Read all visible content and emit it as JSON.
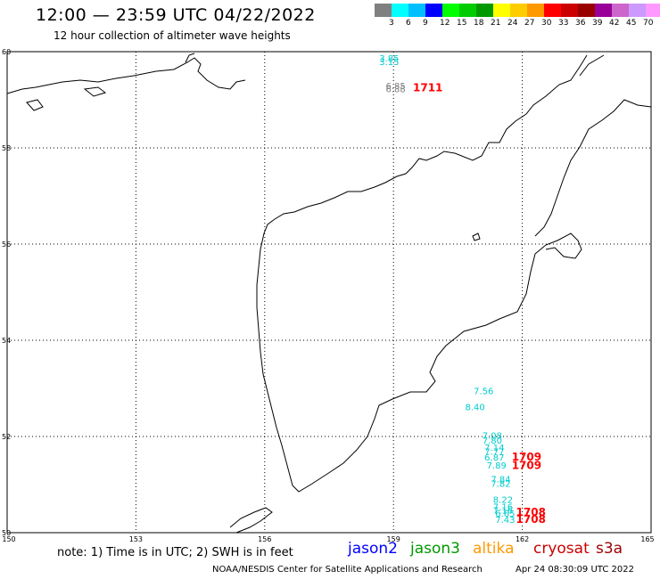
{
  "title": "12:00 — 23:59 UTC 04/22/2022",
  "subtitle": "12 hour collection of altimeter wave heights",
  "scale": {
    "unit": "(ft)",
    "colors": [
      "#808080",
      "#00ffff",
      "#00bfff",
      "#0000ff",
      "#00ff00",
      "#00cc00",
      "#009900",
      "#ffff00",
      "#ffcc00",
      "#ff9900",
      "#ff0000",
      "#cc0000",
      "#990000",
      "#990099",
      "#cc66cc",
      "#cc99ff",
      "#ff99ff",
      "#000000"
    ],
    "labels": [
      "3",
      "6",
      "9",
      "12",
      "15",
      "18",
      "21",
      "24",
      "27",
      "30",
      "33",
      "36",
      "39",
      "42",
      "45",
      "70"
    ]
  },
  "map": {
    "lat_range": [
      50,
      60
    ],
    "lon_range": [
      150,
      165
    ],
    "lat_ticks": [
      "60",
      "58",
      "56",
      "54",
      "52",
      "50"
    ],
    "lon_ticks": [
      "150",
      "153",
      "156",
      "159",
      "162",
      "165"
    ],
    "wave_labels": [
      {
        "text": "3.15",
        "lon": 158.9,
        "lat": 59.72,
        "color": "#00cccc"
      },
      {
        "text": "3.85",
        "lon": 158.9,
        "lat": 59.8,
        "color": "#00cccc"
      },
      {
        "text": "6.85",
        "lon": 159.05,
        "lat": 59.22,
        "color": "#808080"
      },
      {
        "text": "6.88",
        "lon": 159.05,
        "lat": 59.16,
        "color": "#808080"
      },
      {
        "text": "1711",
        "lon": 159.8,
        "lat": 59.18,
        "color": "#ff0000"
      },
      {
        "text": "7.56",
        "lon": 161.1,
        "lat": 52.88,
        "color": "#00cccc"
      },
      {
        "text": "8.40",
        "lon": 160.9,
        "lat": 52.55,
        "color": "#00cccc"
      },
      {
        "text": "7.08",
        "lon": 161.3,
        "lat": 51.95,
        "color": "#00cccc"
      },
      {
        "text": "7.80",
        "lon": 161.3,
        "lat": 51.85,
        "color": "#00cccc"
      },
      {
        "text": "7.14",
        "lon": 161.35,
        "lat": 51.7,
        "color": "#00cccc"
      },
      {
        "text": "7.77",
        "lon": 161.35,
        "lat": 51.62,
        "color": "#00cccc"
      },
      {
        "text": "6.87",
        "lon": 161.35,
        "lat": 51.5,
        "color": "#00cccc"
      },
      {
        "text": "7.89",
        "lon": 161.4,
        "lat": 51.33,
        "color": "#00cccc"
      },
      {
        "text": "1709",
        "lon": 162.1,
        "lat": 51.5,
        "color": "#ff0000"
      },
      {
        "text": "1709",
        "lon": 162.1,
        "lat": 51.32,
        "color": "#ff0000"
      },
      {
        "text": "7.84",
        "lon": 161.5,
        "lat": 51.05,
        "color": "#00cccc"
      },
      {
        "text": "7.82",
        "lon": 161.5,
        "lat": 50.95,
        "color": "#00cccc"
      },
      {
        "text": "8.22",
        "lon": 161.55,
        "lat": 50.62,
        "color": "#00cccc"
      },
      {
        "text": "7.16",
        "lon": 161.55,
        "lat": 50.47,
        "color": "#00cccc"
      },
      {
        "text": "7.16",
        "lon": 161.55,
        "lat": 50.4,
        "color": "#00cccc"
      },
      {
        "text": "6.65",
        "lon": 161.6,
        "lat": 50.33,
        "color": "#00cccc"
      },
      {
        "text": "7.43",
        "lon": 161.6,
        "lat": 50.2,
        "color": "#00cccc"
      },
      {
        "text": "1708",
        "lon": 162.2,
        "lat": 50.35,
        "color": "#ff0000"
      },
      {
        "text": "1708",
        "lon": 162.2,
        "lat": 50.2,
        "color": "#ff0000"
      }
    ]
  },
  "footer": {
    "note": "note: 1) Time is in UTC; 2) SWH is in feet",
    "satellites": [
      {
        "name": "jason2",
        "color": "#0000ff"
      },
      {
        "name": "jason3",
        "color": "#009900"
      },
      {
        "name": "altika",
        "color": "#ff9900"
      },
      {
        "name": "cryosat",
        "color": "#cc0000"
      },
      {
        "name": "s3a",
        "color": "#990000"
      }
    ],
    "credit": "NOAA/NESDIS Center for Satellite Applications and Research",
    "timestamp": "Apr 24 08:30:09 UTC 2022"
  }
}
